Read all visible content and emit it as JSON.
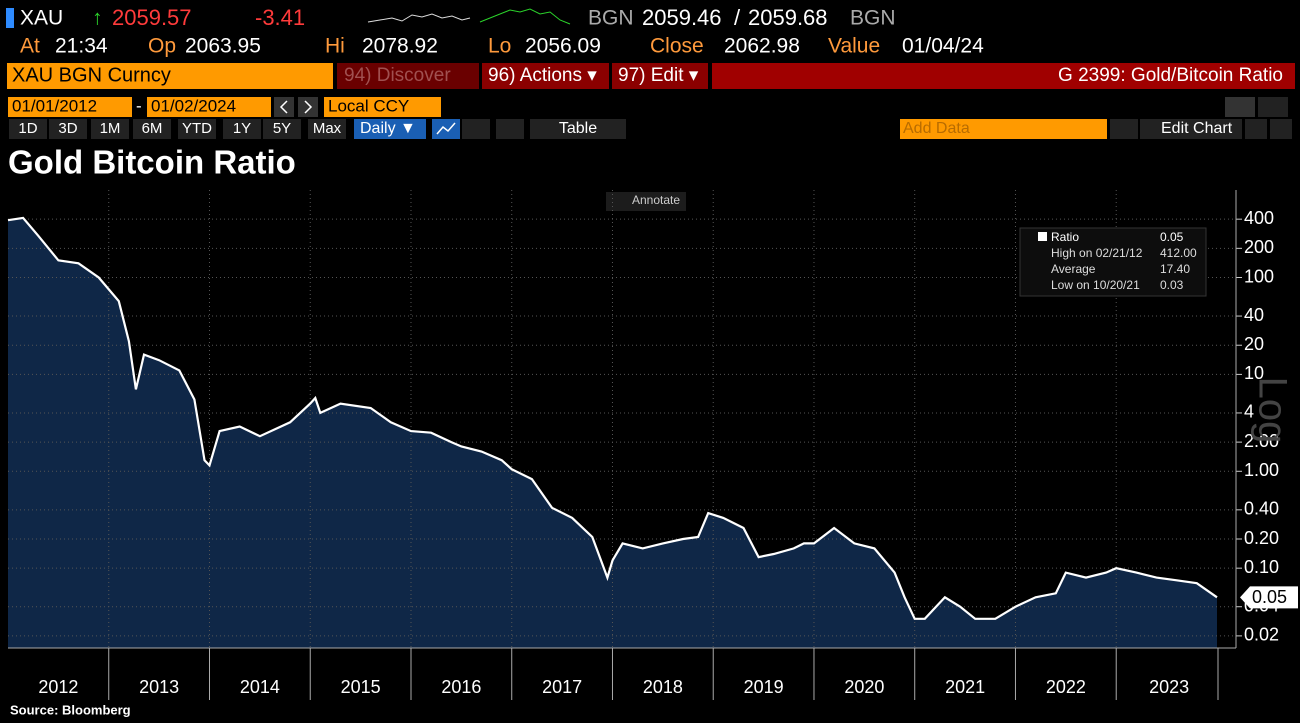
{
  "header": {
    "ticker": "XAU",
    "change_arrow": "↑",
    "last": "2059.57",
    "change": "-3.41",
    "source": "BGN",
    "bid": "2059.46",
    "separator": "/",
    "ask": "2059.68",
    "source_right": "BGN"
  },
  "quote": [
    {
      "label": "At",
      "value": "21:34"
    },
    {
      "label": "Op",
      "value": "2063.95"
    },
    {
      "label": "Hi",
      "value": "2078.92"
    },
    {
      "label": "Lo",
      "value": "2056.09"
    },
    {
      "label": "Close",
      "value": "2062.98"
    },
    {
      "label": "Value",
      "value": "01/04/24"
    }
  ],
  "toolbar": {
    "security": "XAU BGN Curncy",
    "buttons": [
      "94) Discover",
      "96) Actions ▾",
      "97) Edit ▾"
    ],
    "function": "G 2399: Gold/Bitcoin Ratio",
    "start_date": "01/01/2012",
    "date_separator": "-",
    "end_date": "01/02/2024",
    "currency": "Local CCY",
    "periods": [
      "1D",
      "3D",
      "1M",
      "6M",
      "YTD",
      "1Y",
      "5Y",
      "Max"
    ],
    "frequency": "Daily ▼",
    "table": "Table",
    "add_data": "Add Data",
    "edit_chart": "Edit Chart"
  },
  "annotate": "Annotate",
  "chart_data": {
    "type": "line",
    "title": "Gold Bitcoin Ratio",
    "source": "Source: Bloomberg",
    "log_scale": true,
    "grid": true,
    "scale_label": "Log",
    "fill_color": "#0f2747",
    "x": [
      2012.0,
      2012.15,
      2012.3,
      2012.5,
      2012.7,
      2012.9,
      2013.1,
      2013.2,
      2013.27,
      2013.35,
      2013.5,
      2013.7,
      2013.85,
      2013.95,
      2014.0,
      2014.1,
      2014.3,
      2014.5,
      2014.8,
      2015.0,
      2015.05,
      2015.1,
      2015.3,
      2015.6,
      2015.8,
      2016.0,
      2016.2,
      2016.4,
      2016.5,
      2016.7,
      2016.9,
      2017.0,
      2017.2,
      2017.4,
      2017.6,
      2017.8,
      2017.95,
      2018.0,
      2018.1,
      2018.3,
      2018.5,
      2018.7,
      2018.85,
      2018.95,
      2019.1,
      2019.3,
      2019.45,
      2019.6,
      2019.8,
      2019.9,
      2020.0,
      2020.2,
      2020.4,
      2020.6,
      2020.8,
      2020.9,
      2021.0,
      2021.1,
      2021.3,
      2021.45,
      2021.6,
      2021.8,
      2022.0,
      2022.2,
      2022.4,
      2022.5,
      2022.7,
      2022.9,
      2023.0,
      2023.2,
      2023.4,
      2023.6,
      2023.8,
      2024.0
    ],
    "series": [
      {
        "name": "Ratio",
        "color": "#ffffff",
        "values": [
          390,
          412,
          270,
          150,
          140,
          100,
          57,
          22,
          7,
          16,
          14,
          11,
          5.5,
          1.3,
          1.15,
          2.6,
          2.9,
          2.3,
          3.2,
          5,
          5.7,
          4,
          5,
          4.5,
          3.2,
          2.6,
          2.5,
          2,
          1.8,
          1.6,
          1.3,
          1.05,
          0.83,
          0.42,
          0.33,
          0.21,
          0.08,
          0.12,
          0.18,
          0.16,
          0.18,
          0.2,
          0.21,
          0.37,
          0.33,
          0.26,
          0.13,
          0.14,
          0.16,
          0.18,
          0.18,
          0.26,
          0.18,
          0.16,
          0.09,
          0.05,
          0.03,
          0.03,
          0.05,
          0.04,
          0.03,
          0.03,
          0.04,
          0.05,
          0.055,
          0.09,
          0.08,
          0.09,
          0.1,
          0.09,
          0.08,
          0.075,
          0.07,
          0.05
        ]
      }
    ],
    "stats": [
      {
        "label": "High on 02/21/12",
        "value": "412.00"
      },
      {
        "label": "Average",
        "value": "17.40"
      },
      {
        "label": "Low on 10/20/21",
        "value": "0.03"
      }
    ],
    "xlim": [
      2012,
      2024.05
    ],
    "xticks": [
      {
        "value": 2012,
        "label": "2012"
      },
      {
        "value": 2013,
        "label": "2013"
      },
      {
        "value": 2014,
        "label": "2014"
      },
      {
        "value": 2015,
        "label": "2015"
      },
      {
        "value": 2016,
        "label": "2016"
      },
      {
        "value": 2017,
        "label": "2017"
      },
      {
        "value": 2018,
        "label": "2018"
      },
      {
        "value": 2019,
        "label": "2019"
      },
      {
        "value": 2020,
        "label": "2020"
      },
      {
        "value": 2021,
        "label": "2021"
      },
      {
        "value": 2022,
        "label": "2022"
      },
      {
        "value": 2023,
        "label": "2023"
      }
    ],
    "ylim": [
      0.015,
      800
    ],
    "yticks": [
      400,
      200,
      100,
      40,
      20,
      10,
      4,
      {
        "value": 2,
        "label": "2.00"
      },
      {
        "value": 1,
        "label": "1.00"
      },
      {
        "value": 0.4,
        "label": "0.40"
      },
      {
        "value": 0.2,
        "label": "0.20"
      },
      {
        "value": 0.1,
        "label": "0.10"
      },
      {
        "value": 0.04,
        "label": "0.04"
      },
      {
        "value": 0.02,
        "label": "0.02"
      }
    ]
  }
}
